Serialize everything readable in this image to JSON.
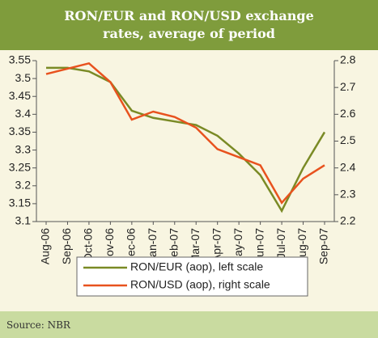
{
  "chart_data": {
    "type": "line",
    "title": "RON/EUR and RON/USD exchange rates, average of period",
    "categories": [
      "Aug-06",
      "Sep-06",
      "Oct-06",
      "Nov-06",
      "Dec-06",
      "Jan-07",
      "Feb-07",
      "Mar-07",
      "Apr-07",
      "May-07",
      "Jun-07",
      "Jul-07",
      "Aug-07",
      "Sep-07"
    ],
    "series": [
      {
        "name": "RON/EUR (aop), left scale",
        "color": "#7a8a25",
        "axis": "y",
        "values": [
          3.53,
          3.53,
          3.52,
          3.49,
          3.41,
          3.39,
          3.38,
          3.37,
          3.34,
          3.29,
          3.23,
          3.13,
          3.25,
          3.35
        ]
      },
      {
        "name": "RON/USD (aop), right scale",
        "color": "#e8521e",
        "axis": "y2",
        "values": [
          2.75,
          2.77,
          2.79,
          2.72,
          2.58,
          2.61,
          2.59,
          2.55,
          2.47,
          2.44,
          2.41,
          2.27,
          2.36,
          2.41
        ]
      }
    ],
    "ylim": [
      3.1,
      3.55
    ],
    "yticks": [
      3.1,
      3.15,
      3.2,
      3.25,
      3.3,
      3.35,
      3.4,
      3.45,
      3.5,
      3.55
    ],
    "y2lim": [
      2.2,
      2.8
    ],
    "y2ticks": [
      2.2,
      2.3,
      2.4,
      2.5,
      2.6,
      2.7,
      2.8
    ],
    "grid": false,
    "legend": "bottom"
  },
  "source": "Source: NBR"
}
